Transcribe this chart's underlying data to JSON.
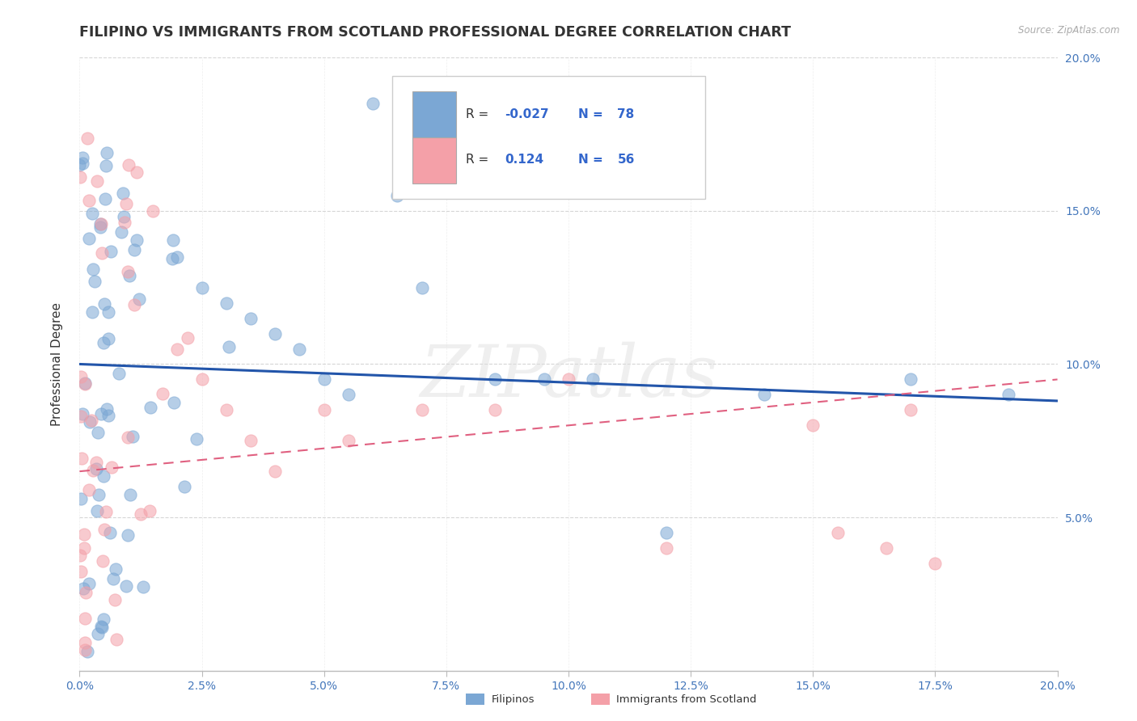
{
  "title": "FILIPINO VS IMMIGRANTS FROM SCOTLAND PROFESSIONAL DEGREE CORRELATION CHART",
  "source": "Source: ZipAtlas.com",
  "ylabel": "Professional Degree",
  "xlim": [
    0.0,
    0.2
  ],
  "ylim": [
    0.0,
    0.2
  ],
  "xtick_labels": [
    "0.0%",
    "2.5%",
    "5.0%",
    "7.5%",
    "10.0%",
    "12.5%",
    "15.0%",
    "17.5%",
    "20.0%"
  ],
  "xtick_values": [
    0.0,
    0.025,
    0.05,
    0.075,
    0.1,
    0.125,
    0.15,
    0.175,
    0.2
  ],
  "ytick_labels": [
    "5.0%",
    "10.0%",
    "15.0%",
    "20.0%"
  ],
  "ytick_values": [
    0.05,
    0.1,
    0.15,
    0.2
  ],
  "r_filipino": -0.027,
  "n_filipino": 78,
  "r_scotland": 0.124,
  "n_scotland": 56,
  "color_filipino": "#7BA7D4",
  "color_scotland": "#F4A0A8",
  "color_trendline_filipino": "#2255AA",
  "color_trendline_scotland": "#E06080",
  "watermark_text": "ZIPatlas",
  "legend_label_filipino": "Filipinos",
  "legend_label_scotland": "Immigrants from Scotland",
  "fil_trendline_x": [
    0.0,
    0.2
  ],
  "fil_trendline_y": [
    0.1,
    0.088
  ],
  "sco_trendline_x": [
    0.0,
    0.2
  ],
  "sco_trendline_y": [
    0.065,
    0.095
  ]
}
